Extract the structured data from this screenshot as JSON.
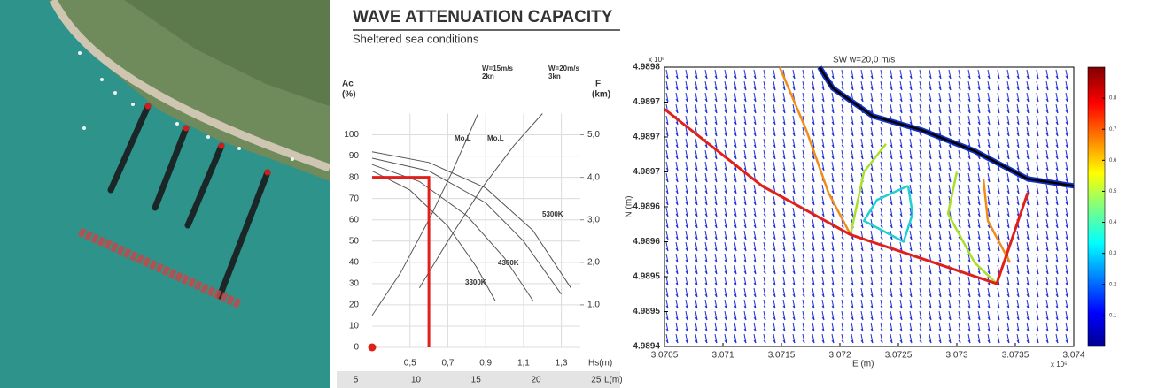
{
  "chart_data": [
    {
      "type": "line",
      "title": "WAVE ATTENUATION CAPACITY",
      "subtitle": "Sheltered sea conditions",
      "y_label": "Ac",
      "y_unit": "(%)",
      "y2_label": "F",
      "y2_unit": "(km)",
      "x_label": "Hs(m)",
      "x2_label": "L(m)",
      "annotations": [
        "W=15m/s",
        "2kn",
        "W=20m/s",
        "3kn"
      ],
      "grid": true,
      "xlim": [
        0.3,
        1.4
      ],
      "xticks": [
        {
          "value": 0.5,
          "label": "0,5"
        },
        {
          "value": 0.7,
          "label": "0,7"
        },
        {
          "value": 0.9,
          "label": "0,9"
        },
        {
          "value": 1.1,
          "label": "1,1"
        },
        {
          "value": 1.3,
          "label": "1,3"
        }
      ],
      "ylim": [
        0,
        110
      ],
      "yticks": [
        0,
        10,
        20,
        30,
        40,
        50,
        60,
        70,
        80,
        90,
        100
      ],
      "y2lim": [
        0,
        5.5
      ],
      "y2ticks": [
        {
          "value": 1,
          "label": "1,0"
        },
        {
          "value": 2,
          "label": "2,0"
        },
        {
          "value": 3,
          "label": "3,0"
        },
        {
          "value": 4,
          "label": "4,0"
        },
        {
          "value": 5,
          "label": "5,0"
        }
      ],
      "x2lim": [
        4,
        27
      ],
      "x2ticks": [
        5,
        10,
        15,
        20,
        25
      ],
      "series": [
        {
          "name": "Mo.L",
          "color": "#555555",
          "x": [
            0.3,
            0.45,
            0.6,
            0.72,
            0.86
          ],
          "values": [
            15,
            35,
            60,
            82,
            110
          ]
        },
        {
          "name": "Mo.L",
          "color": "#555555",
          "x": [
            0.55,
            0.7,
            0.88,
            1.05,
            1.2
          ],
          "values": [
            28,
            50,
            75,
            95,
            110
          ]
        },
        {
          "color": "#555555",
          "x": [
            0.3,
            0.6,
            0.9,
            1.15,
            1.35
          ],
          "values": [
            92,
            87,
            75,
            55,
            28
          ]
        },
        {
          "name": "5300K",
          "color": "#555555",
          "x": [
            0.3,
            0.6,
            0.9,
            1.1,
            1.3
          ],
          "values": [
            89,
            83,
            68,
            50,
            25
          ]
        },
        {
          "name": "4300K",
          "color": "#555555",
          "x": [
            0.3,
            0.55,
            0.8,
            1.0,
            1.15
          ],
          "values": [
            86,
            78,
            62,
            42,
            22
          ]
        },
        {
          "name": "3300K",
          "color": "#555555",
          "x": [
            0.3,
            0.5,
            0.7,
            0.85,
            0.95
          ],
          "values": [
            83,
            74,
            57,
            38,
            22
          ]
        },
        {
          "color": "#e0201b",
          "x": [
            0.3,
            0.6,
            0.6
          ],
          "values": [
            80,
            80,
            0
          ]
        },
        {
          "color": "#e0201b",
          "x": [
            0.3
          ],
          "values": [
            0
          ],
          "marker": "circle"
        }
      ]
    },
    {
      "type": "quiver",
      "title": "SW   w=20,0 m/s",
      "x_label": "E (m)",
      "y_label": "N (m)",
      "x_multiplier": "x 10⁶",
      "y_multiplier": "x 10⁶",
      "xlim": [
        3.0705,
        3.074
      ],
      "xticks": [
        3.0705,
        3.071,
        3.0715,
        3.072,
        3.0725,
        3.073,
        3.0735,
        3.074
      ],
      "ylim": [
        4.9894,
        4.9898
      ],
      "yticks": [
        4.9894,
        {
          "value": 4.98945,
          "label": "4.9895"
        },
        4.9895,
        {
          "value": 4.98955,
          "label": "4.9896"
        },
        4.9896,
        {
          "value": 4.98965,
          "label": "4.9897"
        },
        4.9897,
        {
          "value": 4.98975,
          "label": "4.9897"
        },
        4.9898
      ],
      "colorbar": {
        "lim": [
          0,
          0.9
        ],
        "ticks": [
          0.1,
          0.2,
          0.3,
          0.4,
          0.5,
          0.6,
          0.7,
          0.8
        ]
      },
      "series": [
        {
          "color": "#1030c0",
          "x": [
            3.071826,
            3.071939,
            3.07228,
            3.072697,
            3.073152,
            3.073606,
            3.074
          ],
          "values": [
            4.9898,
            4.98977,
            4.98973,
            4.98971,
            4.98968,
            4.98964,
            4.98963
          ],
          "width": 6
        },
        {
          "color": "#000000",
          "x": [
            3.071826,
            3.071939,
            3.07228,
            3.072697,
            3.073152,
            3.073606,
            3.074
          ],
          "values": [
            4.9898,
            4.98977,
            4.98973,
            4.98971,
            4.98968,
            4.98964,
            4.98963
          ],
          "width": 2.5
        },
        {
          "color": "#f08c1a",
          "x": [
            3.071485,
            3.071712,
            3.071902,
            3.072091
          ],
          "values": [
            4.9898,
            4.98971,
            4.98962,
            4.98956
          ],
          "width": 2.5
        },
        {
          "color": "#a8e02a",
          "x": [
            3.072394,
            3.072205,
            3.072129,
            3.072091
          ],
          "values": [
            4.98969,
            4.98965,
            4.98959,
            4.98956
          ],
          "width": 2.5
        },
        {
          "color": "#20d0d0",
          "x": [
            3.072583,
            3.072318,
            3.072205,
            3.072545,
            3.072621,
            3.072583
          ],
          "values": [
            4.98963,
            4.98961,
            4.98958,
            4.98955,
            4.98959,
            4.98963
          ],
          "width": 2.5
        },
        {
          "color": "#a8e02a",
          "x": [
            3.073,
            3.072924,
            3.073152,
            3.073341
          ],
          "values": [
            4.98965,
            4.98959,
            4.98952,
            4.98949
          ],
          "width": 2.5
        },
        {
          "color": "#f08c1a",
          "x": [
            3.073227,
            3.073265,
            3.073455
          ],
          "values": [
            4.98964,
            4.98958,
            4.98952
          ],
          "width": 2.5
        },
        {
          "color": "#e0201b",
          "x": [
            3.0705,
            3.071333,
            3.072091,
            3.073341,
            3.073606
          ],
          "values": [
            4.98974,
            4.98963,
            4.98956,
            4.98949,
            4.98962
          ],
          "width": 3
        }
      ]
    }
  ]
}
